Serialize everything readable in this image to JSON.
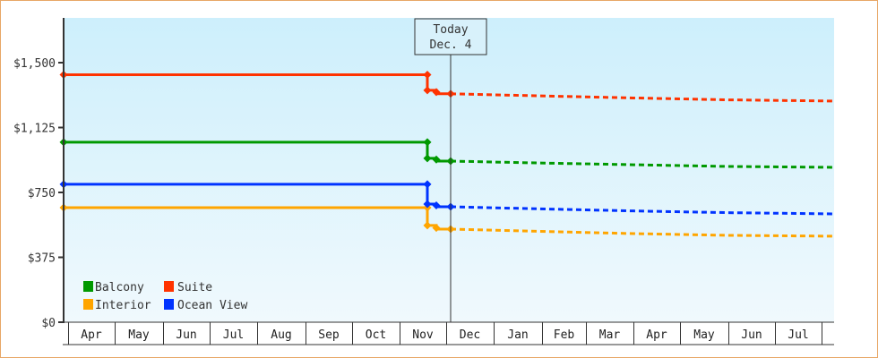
{
  "chart_data": {
    "type": "line",
    "title": "",
    "xlabel": "",
    "ylabel": "",
    "ylim": [
      0,
      1800
    ],
    "y_ticks": [
      {
        "value": 0,
        "label": "$0"
      },
      {
        "value": 375,
        "label": "$375"
      },
      {
        "value": 750,
        "label": "$750"
      },
      {
        "value": 1125,
        "label": "$1,125"
      },
      {
        "value": 1500,
        "label": "$1,500"
      }
    ],
    "x_ticks": [
      "Apr",
      "May",
      "Jun",
      "Jul",
      "Aug",
      "Sep",
      "Oct",
      "Nov",
      "Dec",
      "Jan",
      "Feb",
      "Mar",
      "Apr",
      "May",
      "Jun",
      "Jul"
    ],
    "grid": false,
    "legend_position": "lower-left-inside",
    "annotation": {
      "label_line1": "Today",
      "label_line2": "Dec. 4"
    },
    "series": [
      {
        "name": "Balcony",
        "color": "#009900",
        "historical": [
          {
            "x": "Apr 1",
            "y": 1040
          },
          {
            "x": "Nov 25",
            "y": 1040
          },
          {
            "x": "Nov 26",
            "y": 947
          },
          {
            "x": "Nov 28",
            "y": 940
          },
          {
            "x": "Dec 4",
            "y": 931
          }
        ],
        "forecast": [
          {
            "x": "Dec 4",
            "y": 931
          },
          {
            "x": "Feb",
            "y": 920
          },
          {
            "x": "Apr",
            "y": 910
          },
          {
            "x": "Jun",
            "y": 900
          },
          {
            "x": "Jul end",
            "y": 895
          }
        ]
      },
      {
        "name": "Suite",
        "color": "#ff3300",
        "historical": [
          {
            "x": "Apr 1",
            "y": 1430
          },
          {
            "x": "Nov 25",
            "y": 1430
          },
          {
            "x": "Nov 26",
            "y": 1340
          },
          {
            "x": "Nov 28",
            "y": 1330
          },
          {
            "x": "Dec 4",
            "y": 1320
          }
        ],
        "forecast": [
          {
            "x": "Dec 4",
            "y": 1320
          },
          {
            "x": "Feb",
            "y": 1308
          },
          {
            "x": "Apr",
            "y": 1296
          },
          {
            "x": "Jun",
            "y": 1285
          },
          {
            "x": "Jul end",
            "y": 1278
          }
        ]
      },
      {
        "name": "Interior",
        "color": "#ffa500",
        "historical": [
          {
            "x": "Apr 1",
            "y": 662
          },
          {
            "x": "Nov 25",
            "y": 662
          },
          {
            "x": "Nov 26",
            "y": 559
          },
          {
            "x": "Nov 28",
            "y": 545
          },
          {
            "x": "Dec 4",
            "y": 538
          }
        ],
        "forecast": [
          {
            "x": "Dec 4",
            "y": 538
          },
          {
            "x": "Feb",
            "y": 525
          },
          {
            "x": "Apr",
            "y": 512
          },
          {
            "x": "Jun",
            "y": 502
          },
          {
            "x": "Jul end",
            "y": 497
          }
        ]
      },
      {
        "name": "Ocean View",
        "color": "#0033ff",
        "historical": [
          {
            "x": "Apr 1",
            "y": 797
          },
          {
            "x": "Nov 25",
            "y": 797
          },
          {
            "x": "Nov 26",
            "y": 683
          },
          {
            "x": "Nov 28",
            "y": 675
          },
          {
            "x": "Dec 4",
            "y": 667
          }
        ],
        "forecast": [
          {
            "x": "Dec 4",
            "y": 667
          },
          {
            "x": "Feb",
            "y": 655
          },
          {
            "x": "Apr",
            "y": 643
          },
          {
            "x": "Jun",
            "y": 633
          },
          {
            "x": "Jul end",
            "y": 626
          }
        ]
      }
    ]
  },
  "legend": {
    "items": [
      {
        "label": "Balcony",
        "color": "#009900"
      },
      {
        "label": "Suite",
        "color": "#ff3300"
      },
      {
        "label": "Interior",
        "color": "#ffa500"
      },
      {
        "label": "Ocean View",
        "color": "#0033ff"
      }
    ]
  },
  "today_marker": {
    "line1": "Today",
    "line2": "Dec. 4"
  },
  "colors": {
    "frame_border": "#e8a766",
    "plot_bg_top": "#cdeffc",
    "plot_bg_bottom": "#f0f9fd",
    "axis": "#333333"
  }
}
